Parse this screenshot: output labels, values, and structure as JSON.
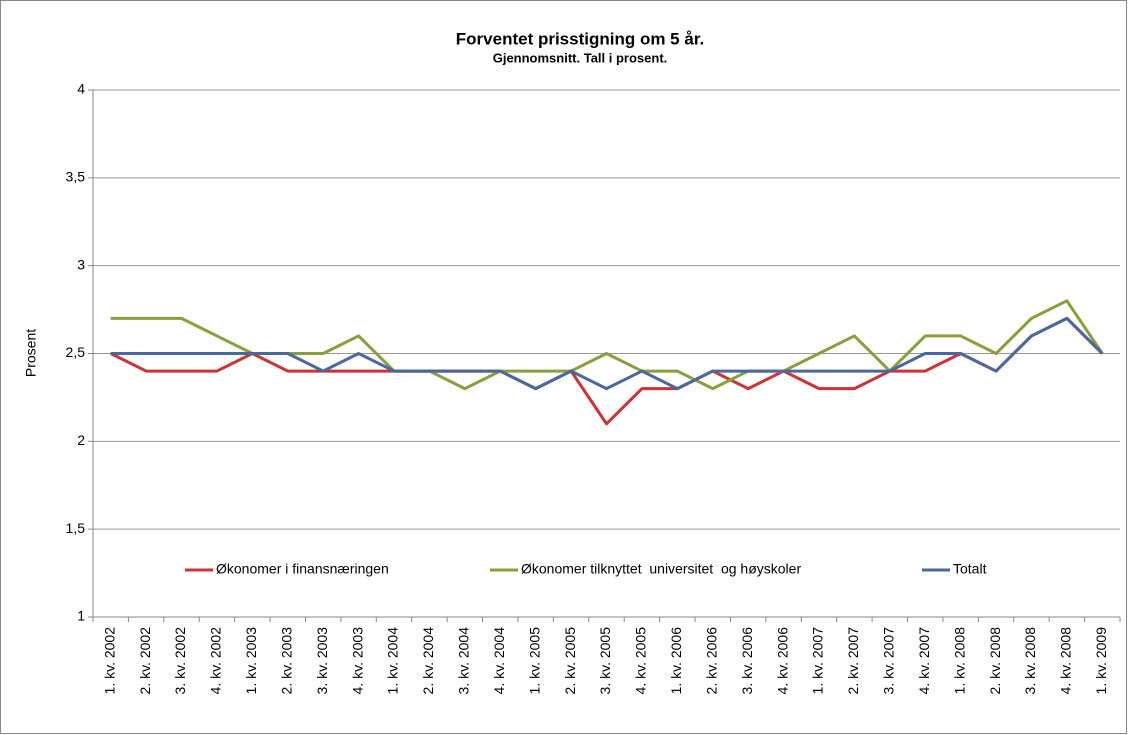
{
  "chart_data": {
    "type": "line",
    "title": "Forventet prisstigning om 5 år.",
    "subtitle": "Gjennomsnitt. Tall i prosent.",
    "y_label": "Prosent",
    "categories": [
      "1. kv. 2002",
      "2. kv. 2002",
      "3. kv. 2002",
      "4. kv. 2002",
      "1. kv. 2003",
      "2. kv. 2003",
      "3. kv. 2003",
      "4. kv. 2003",
      "1. kv. 2004",
      "2. kv. 2004",
      "3. kv. 2004",
      "4. kv. 2004",
      "1. kv. 2005",
      "2. kv. 2005",
      "3. kv. 2005",
      "4. kv. 2005",
      "1. kv. 2006",
      "2. kv. 2006",
      "3. kv. 2006",
      "4. kv. 2006",
      "1. kv. 2007",
      "2. kv. 2007",
      "3. kv. 2007",
      "4. kv. 2007",
      "1. kv. 2008",
      "2. kv. 2008",
      "3. kv. 2008",
      "4. kv. 2008",
      "1. kv. 2009"
    ],
    "series": [
      {
        "name": "Økonomer i finansnæringen",
        "color": "#cc3333",
        "values": [
          2.5,
          2.4,
          2.4,
          2.4,
          2.5,
          2.4,
          2.4,
          2.4,
          2.4,
          2.4,
          2.4,
          2.4,
          2.3,
          2.4,
          2.1,
          2.3,
          2.3,
          2.4,
          2.3,
          2.4,
          2.3,
          2.3,
          2.4,
          2.4,
          2.5,
          2.4,
          2.6,
          2.7,
          2.5
        ]
      },
      {
        "name": "Økonomer tilknyttet  universitet  og høyskoler",
        "color": "#86a03c",
        "values": [
          2.7,
          2.7,
          2.7,
          2.6,
          2.5,
          2.5,
          2.5,
          2.6,
          2.4,
          2.4,
          2.3,
          2.4,
          2.4,
          2.4,
          2.5,
          2.4,
          2.4,
          2.3,
          2.4,
          2.4,
          2.5,
          2.6,
          2.4,
          2.6,
          2.6,
          2.5,
          2.7,
          2.8,
          2.5
        ]
      },
      {
        "name": "Totalt",
        "color": "#4a67a0",
        "values": [
          2.5,
          2.5,
          2.5,
          2.5,
          2.5,
          2.5,
          2.4,
          2.5,
          2.4,
          2.4,
          2.4,
          2.4,
          2.3,
          2.4,
          2.3,
          2.4,
          2.3,
          2.4,
          2.4,
          2.4,
          2.4,
          2.4,
          2.4,
          2.5,
          2.5,
          2.4,
          2.6,
          2.7,
          2.5
        ]
      }
    ],
    "ylim": [
      1,
      4
    ],
    "yticks": [
      1,
      {
        "value": 1.5,
        "label": "1,5"
      },
      2,
      {
        "value": 2.5,
        "label": "2,5"
      },
      3,
      {
        "value": 3.5,
        "label": "3,5"
      },
      4
    ],
    "grid": true
  }
}
